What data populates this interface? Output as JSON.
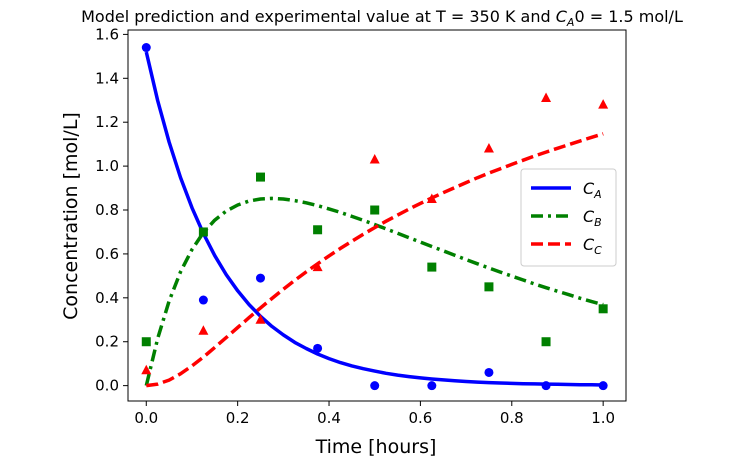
{
  "chart_data": {
    "type": "line",
    "title_prefix": "Model prediction and experimental value at T = 350 K and ",
    "title_var": "C",
    "title_sub": "A",
    "title_suffix": "0 = 1.5 mol/L",
    "xlabel": "Time [hours]",
    "ylabel": "Concentration [mol/L]",
    "xlim": [
      -0.04,
      1.05
    ],
    "ylim": [
      -0.07,
      1.62
    ],
    "xticks": [
      0.0,
      0.2,
      0.4,
      0.6,
      0.8,
      1.0
    ],
    "xtick_labels": [
      "0.0",
      "0.2",
      "0.4",
      "0.6",
      "0.8",
      "1.0"
    ],
    "yticks": [
      0.0,
      0.2,
      0.4,
      0.6,
      0.8,
      1.0,
      1.2,
      1.4,
      1.6
    ],
    "ytick_labels": [
      "0.0",
      "0.2",
      "0.4",
      "0.6",
      "0.8",
      "1.0",
      "1.2",
      "1.4",
      "1.6"
    ],
    "grid": false,
    "legend_position": "right",
    "model": {
      "x": [
        0,
        0.025,
        0.05,
        0.075,
        0.1,
        0.125,
        0.15,
        0.175,
        0.2,
        0.225,
        0.25,
        0.275,
        0.3,
        0.325,
        0.35,
        0.375,
        0.4,
        0.425,
        0.45,
        0.475,
        0.5,
        0.525,
        0.55,
        0.575,
        0.6,
        0.625,
        0.65,
        0.675,
        0.7,
        0.725,
        0.75,
        0.775,
        0.8,
        0.825,
        0.85,
        0.875,
        0.9,
        0.925,
        0.95,
        0.975,
        1.0
      ],
      "series": [
        {
          "name_var": "C",
          "name_sub": "A",
          "color": "#0000ff",
          "dash": "solid",
          "values": [
            1.52,
            1.298,
            1.11,
            0.948,
            0.81,
            0.693,
            0.592,
            0.506,
            0.432,
            0.369,
            0.316,
            0.27,
            0.231,
            0.197,
            0.169,
            0.144,
            0.123,
            0.105,
            0.09,
            0.077,
            0.066,
            0.056,
            0.048,
            0.041,
            0.035,
            0.03,
            0.026,
            0.022,
            0.019,
            0.016,
            0.014,
            0.012,
            0.01,
            0.009,
            0.008,
            0.007,
            0.006,
            0.005,
            0.004,
            0.004,
            0.003
          ]
        },
        {
          "name_var": "C",
          "name_sub": "B",
          "color": "#008000",
          "dash": "dashdot",
          "values": [
            0.0,
            0.215,
            0.385,
            0.518,
            0.62,
            0.697,
            0.754,
            0.795,
            0.823,
            0.841,
            0.85,
            0.853,
            0.85,
            0.843,
            0.833,
            0.82,
            0.805,
            0.789,
            0.771,
            0.753,
            0.734,
            0.714,
            0.694,
            0.674,
            0.654,
            0.634,
            0.614,
            0.594,
            0.574,
            0.555,
            0.536,
            0.517,
            0.499,
            0.481,
            0.463,
            0.446,
            0.43,
            0.414,
            0.398,
            0.383,
            0.369
          ]
        },
        {
          "name_var": "C",
          "name_sub": "C",
          "color": "#ff0000",
          "dash": "dashed",
          "values": [
            0.0,
            0.007,
            0.025,
            0.054,
            0.09,
            0.13,
            0.174,
            0.219,
            0.265,
            0.31,
            0.354,
            0.397,
            0.439,
            0.48,
            0.518,
            0.555,
            0.591,
            0.625,
            0.658,
            0.69,
            0.72,
            0.749,
            0.777,
            0.804,
            0.83,
            0.855,
            0.879,
            0.902,
            0.925,
            0.947,
            0.968,
            0.988,
            1.008,
            1.027,
            1.046,
            1.064,
            1.081,
            1.098,
            1.115,
            1.131,
            1.147
          ]
        }
      ]
    },
    "experimental": {
      "x": [
        0.0,
        0.125,
        0.25,
        0.375,
        0.5,
        0.625,
        0.75,
        0.875,
        1.0
      ],
      "series": [
        {
          "series_ref": "A",
          "color": "#0000ff",
          "marker": "circle",
          "values": [
            1.54,
            0.39,
            0.49,
            0.17,
            0.0,
            0.0,
            0.06,
            0.0,
            0.0
          ]
        },
        {
          "series_ref": "B",
          "color": "#008000",
          "marker": "square",
          "values": [
            0.2,
            0.7,
            0.95,
            0.71,
            0.8,
            0.54,
            0.45,
            0.2,
            0.35
          ]
        },
        {
          "series_ref": "C",
          "color": "#ff0000",
          "marker": "triangle",
          "values": [
            0.07,
            0.25,
            0.3,
            0.54,
            1.03,
            0.85,
            1.08,
            1.31,
            1.28
          ]
        }
      ]
    }
  }
}
